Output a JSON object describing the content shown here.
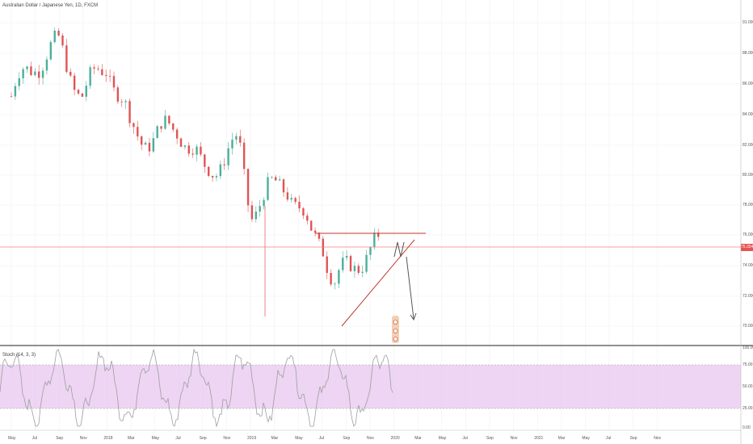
{
  "title": "Australian Dollar / Japanese Yen, 1D, FXCM",
  "indicator_label": "Stoch (14, 3, 3)",
  "last_price_tag": "75.354",
  "colors": {
    "up": "#4caf9a",
    "down": "#e05454",
    "resistance": "#c0392b",
    "price_line": "#f08080",
    "stoch_band": "#e1bee7",
    "stoch_line": "#9e9e9e",
    "arrow": "#555555"
  },
  "price_axis": {
    "labels": [
      "91.000",
      "88.000",
      "86.000",
      "84.000",
      "82.000",
      "80.000",
      "78.000",
      "76.000",
      "74.000",
      "72.000",
      "70.000"
    ]
  },
  "stoch_axis": {
    "labels": [
      "100.00",
      "75.00",
      "50.00",
      "25.00",
      "0.00"
    ]
  },
  "time_axis": {
    "labels": [
      "May",
      "Jul",
      "Sep",
      "Nov",
      "2018",
      "Mar",
      "May",
      "Jul",
      "Sep",
      "Nov",
      "2019",
      "Mar",
      "May",
      "Jul",
      "Sep",
      "Nov",
      "2020",
      "Mar",
      "May",
      "Jul",
      "Sep",
      "Nov",
      "2021",
      "Mar",
      "May",
      "Jul",
      "Sep",
      "Nov"
    ]
  },
  "chart_data": {
    "type": "candlestick",
    "title": "Australian Dollar / Japanese Yen, 1D, FXCM",
    "ylim": [
      69,
      92
    ],
    "resistance_level": 76.1,
    "last_price": 75.354,
    "approx_close_path": [
      {
        "x": "2017-05",
        "y": 86.0
      },
      {
        "x": "2017-07",
        "y": 88.5
      },
      {
        "x": "2017-09",
        "y": 89.5
      },
      {
        "x": "2017-11",
        "y": 86.0
      },
      {
        "x": "2018-01",
        "y": 88.5
      },
      {
        "x": "2018-03",
        "y": 83.5
      },
      {
        "x": "2018-05",
        "y": 83.0
      },
      {
        "x": "2018-07",
        "y": 84.0
      },
      {
        "x": "2018-09",
        "y": 80.5
      },
      {
        "x": "2018-12",
        "y": 82.5
      },
      {
        "x": "2019-01",
        "y": 78.0
      },
      {
        "x": "2019-04",
        "y": 80.0
      },
      {
        "x": "2019-06",
        "y": 76.0
      },
      {
        "x": "2019-07",
        "y": 76.0
      },
      {
        "x": "2019-08",
        "y": 72.5
      },
      {
        "x": "2019-10",
        "y": 74.5
      },
      {
        "x": "2019-12",
        "y": 75.4
      }
    ]
  }
}
